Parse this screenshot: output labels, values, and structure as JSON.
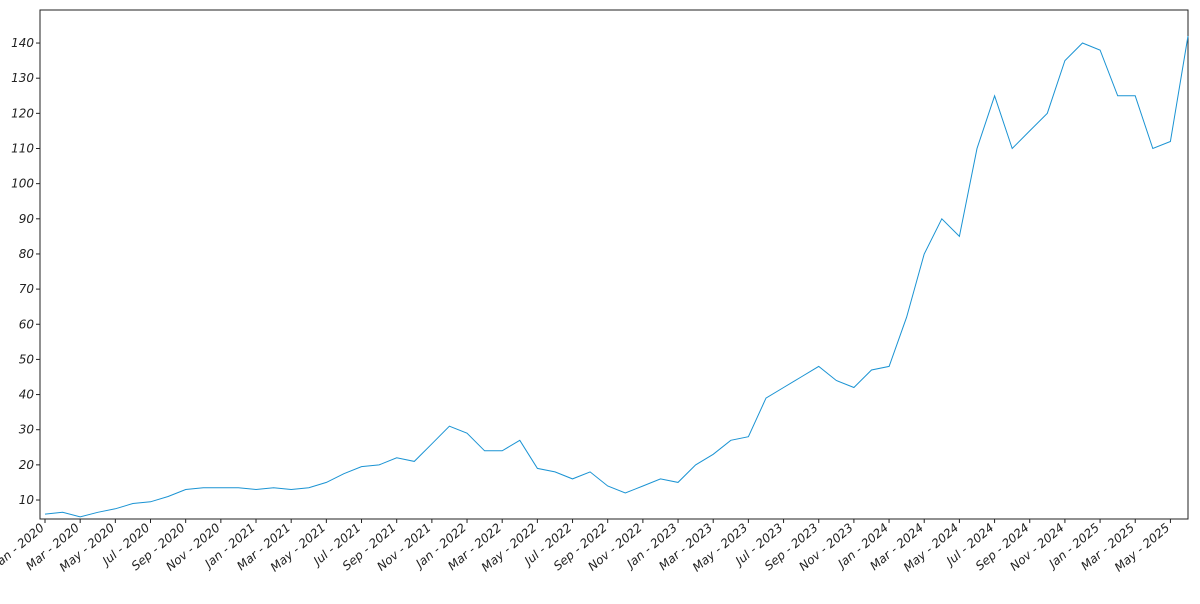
{
  "chart_data": {
    "type": "line",
    "x": [
      "2020-01",
      "2020-02",
      "2020-03",
      "2020-04",
      "2020-05",
      "2020-06",
      "2020-07",
      "2020-08",
      "2020-09",
      "2020-10",
      "2020-11",
      "2020-12",
      "2021-01",
      "2021-02",
      "2021-03",
      "2021-04",
      "2021-05",
      "2021-06",
      "2021-07",
      "2021-08",
      "2021-09",
      "2021-10",
      "2021-11",
      "2021-12",
      "2022-01",
      "2022-02",
      "2022-03",
      "2022-04",
      "2022-05",
      "2022-06",
      "2022-07",
      "2022-08",
      "2022-09",
      "2022-10",
      "2022-11",
      "2022-12",
      "2023-01",
      "2023-02",
      "2023-03",
      "2023-04",
      "2023-05",
      "2023-06",
      "2023-07",
      "2023-08",
      "2023-09",
      "2023-10",
      "2023-11",
      "2023-12",
      "2024-01",
      "2024-02",
      "2024-03",
      "2024-04",
      "2024-05",
      "2024-06",
      "2024-07",
      "2024-08",
      "2024-09",
      "2024-10",
      "2024-11",
      "2024-12",
      "2025-01",
      "2025-02",
      "2025-03",
      "2025-04",
      "2025-05",
      "2025-06"
    ],
    "series": [
      {
        "color": "#1a93d3",
        "values": [
          6,
          6.5,
          5.2,
          6.5,
          7.5,
          9,
          9.5,
          11,
          13,
          13.5,
          13.5,
          13.5,
          13,
          13.5,
          13,
          13.5,
          15,
          17.5,
          19.5,
          20,
          22,
          21,
          26,
          31,
          29,
          24,
          24,
          27,
          19,
          18,
          16,
          18,
          14,
          12,
          14,
          16,
          15,
          20,
          23,
          27,
          28,
          39,
          42,
          45,
          48,
          44,
          42,
          47,
          48,
          62,
          80,
          90,
          85,
          110,
          125,
          110,
          115,
          120,
          135,
          140,
          138,
          125,
          125,
          110,
          112,
          142
        ]
      }
    ],
    "xlim": [
      "2020-01",
      "2025-06"
    ],
    "xticks": [
      {
        "value": "2020-01",
        "label": "Jan - 2020"
      },
      {
        "value": "2020-03",
        "label": "Mar - 2020"
      },
      {
        "value": "2020-05",
        "label": "May - 2020"
      },
      {
        "value": "2020-07",
        "label": "Jul - 2020"
      },
      {
        "value": "2020-09",
        "label": "Sep - 2020"
      },
      {
        "value": "2020-11",
        "label": "Nov - 2020"
      },
      {
        "value": "2021-01",
        "label": "Jan - 2021"
      },
      {
        "value": "2021-03",
        "label": "Mar - 2021"
      },
      {
        "value": "2021-05",
        "label": "May - 2021"
      },
      {
        "value": "2021-07",
        "label": "Jul - 2021"
      },
      {
        "value": "2021-09",
        "label": "Sep - 2021"
      },
      {
        "value": "2021-11",
        "label": "Nov - 2021"
      },
      {
        "value": "2022-01",
        "label": "Jan - 2022"
      },
      {
        "value": "2022-03",
        "label": "Mar - 2022"
      },
      {
        "value": "2022-05",
        "label": "May - 2022"
      },
      {
        "value": "2022-07",
        "label": "Jul - 2022"
      },
      {
        "value": "2022-09",
        "label": "Sep - 2022"
      },
      {
        "value": "2022-11",
        "label": "Nov - 2022"
      },
      {
        "value": "2023-01",
        "label": "Jan - 2023"
      },
      {
        "value": "2023-03",
        "label": "Mar - 2023"
      },
      {
        "value": "2023-05",
        "label": "May - 2023"
      },
      {
        "value": "2023-07",
        "label": "Jul - 2023"
      },
      {
        "value": "2023-09",
        "label": "Sep - 2023"
      },
      {
        "value": "2023-11",
        "label": "Nov - 2023"
      },
      {
        "value": "2024-01",
        "label": "Jan - 2024"
      },
      {
        "value": "2024-03",
        "label": "Mar - 2024"
      },
      {
        "value": "2024-05",
        "label": "May - 2024"
      },
      {
        "value": "2024-07",
        "label": "Jul - 2024"
      },
      {
        "value": "2024-09",
        "label": "Sep - 2024"
      },
      {
        "value": "2024-11",
        "label": "Nov - 2024"
      },
      {
        "value": "2025-01",
        "label": "Jan - 2025"
      },
      {
        "value": "2025-03",
        "label": "Mar - 2025"
      },
      {
        "value": "2025-05",
        "label": "May - 2025"
      }
    ],
    "ylim": [
      4.6,
      149.4
    ],
    "yticks": [
      10,
      20,
      30,
      40,
      50,
      60,
      70,
      80,
      90,
      100,
      110,
      120,
      130,
      140
    ]
  }
}
